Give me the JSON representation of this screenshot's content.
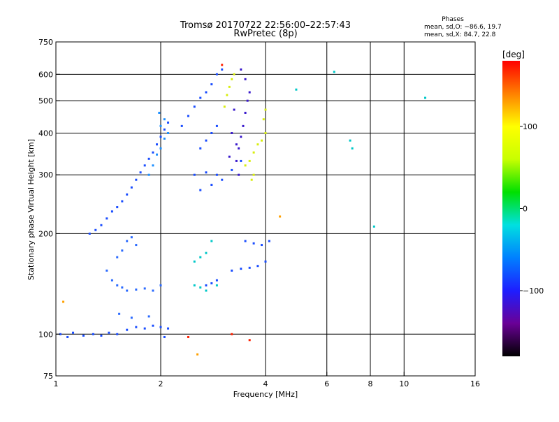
{
  "chart_data": {
    "type": "scatter",
    "title": "Tromsø 20170722 22:56:00–22:57:43",
    "subtitle": "RwPretec (8p)",
    "xlabel": "Frequency [MHz]",
    "ylabel": "Stationary phase Virtual Height [km]",
    "x_scale": "log",
    "y_scale": "log",
    "xlim": [
      1,
      16
    ],
    "ylim": [
      75,
      750
    ],
    "x_ticks": [
      1,
      2,
      4,
      6,
      8,
      10,
      16
    ],
    "x_tick_labels": [
      "1",
      "2",
      "4",
      "6",
      "8",
      "10",
      "16"
    ],
    "x_gridlines": [
      2,
      4,
      6,
      8,
      10
    ],
    "y_ticks": [
      75,
      100,
      200,
      300,
      400,
      500,
      600,
      750
    ],
    "y_tick_labels": [
      "75",
      "100",
      "200",
      "300",
      "400",
      "500",
      "600",
      "750"
    ],
    "y_gridlines": [
      100,
      200,
      300,
      400,
      500,
      600
    ],
    "grid": true,
    "legend_title": "Phases",
    "legend_lines": [
      "mean, sd,O:  −86.6, 19.7",
      "mean, sd,X:   84.7, 22.8"
    ],
    "legend_placement": "top-right",
    "colorbar": {
      "label": "[deg]",
      "range": [
        -180,
        180
      ],
      "ticks": [
        100,
        0,
        -100
      ],
      "tick_labels": [
        "100",
        "0",
        "−100"
      ],
      "colormap": [
        "#000000",
        "#6a0096",
        "#1e1eff",
        "#0080ff",
        "#00e0e0",
        "#00e000",
        "#c8ff00",
        "#ffff00",
        "#ff8000",
        "#ff0000"
      ]
    },
    "series": [
      {
        "color": "#1a4dff",
        "points": [
          [
            1.03,
            100
          ],
          [
            1.08,
            98
          ],
          [
            1.12,
            101
          ],
          [
            1.2,
            99
          ],
          [
            1.28,
            100
          ],
          [
            1.35,
            99
          ],
          [
            1.42,
            101
          ],
          [
            1.5,
            100
          ],
          [
            1.6,
            103
          ],
          [
            1.7,
            105
          ],
          [
            1.8,
            104
          ],
          [
            1.9,
            106
          ],
          [
            2.0,
            105
          ],
          [
            2.1,
            104
          ],
          [
            2.05,
            98
          ]
        ]
      },
      {
        "color": "#1a4dff",
        "points": [
          [
            1.25,
            200
          ],
          [
            1.3,
            205
          ],
          [
            1.35,
            212
          ],
          [
            1.4,
            222
          ],
          [
            1.45,
            233
          ],
          [
            1.5,
            240
          ],
          [
            1.55,
            250
          ],
          [
            1.6,
            262
          ],
          [
            1.65,
            275
          ],
          [
            1.7,
            290
          ],
          [
            1.75,
            305
          ],
          [
            1.8,
            320
          ],
          [
            1.85,
            335
          ],
          [
            1.9,
            350
          ],
          [
            1.95,
            370
          ],
          [
            2.0,
            390
          ],
          [
            2.05,
            410
          ],
          [
            2.1,
            430
          ]
        ]
      },
      {
        "color": "#2a6aff",
        "points": [
          [
            1.4,
            155
          ],
          [
            1.45,
            145
          ],
          [
            1.5,
            140
          ],
          [
            1.55,
            138
          ],
          [
            1.6,
            135
          ],
          [
            1.7,
            136
          ],
          [
            1.8,
            137
          ],
          [
            1.9,
            135
          ],
          [
            2.0,
            140
          ],
          [
            1.5,
            170
          ],
          [
            1.55,
            178
          ],
          [
            1.6,
            190
          ],
          [
            1.65,
            195
          ],
          [
            1.7,
            185
          ],
          [
            1.52,
            115
          ],
          [
            1.65,
            112
          ],
          [
            1.85,
            113
          ]
        ]
      },
      {
        "color": "#1e90ff",
        "points": [
          [
            1.85,
            300
          ],
          [
            1.9,
            320
          ],
          [
            1.95,
            345
          ],
          [
            2.0,
            360
          ],
          [
            2.05,
            385
          ],
          [
            2.1,
            400
          ],
          [
            2.0,
            420
          ],
          [
            2.05,
            440
          ],
          [
            1.98,
            460
          ]
        ]
      },
      {
        "color": "#1a4dff",
        "points": [
          [
            2.3,
            420
          ],
          [
            2.4,
            450
          ],
          [
            2.5,
            480
          ],
          [
            2.6,
            510
          ],
          [
            2.7,
            530
          ],
          [
            2.8,
            560
          ],
          [
            2.9,
            600
          ],
          [
            3.0,
            620
          ],
          [
            2.6,
            360
          ],
          [
            2.7,
            380
          ],
          [
            2.8,
            400
          ],
          [
            2.9,
            420
          ],
          [
            2.5,
            300
          ],
          [
            2.7,
            305
          ],
          [
            2.9,
            300
          ],
          [
            2.6,
            270
          ],
          [
            2.8,
            280
          ],
          [
            3.0,
            290
          ],
          [
            3.2,
            310
          ],
          [
            3.4,
            330
          ]
        ]
      },
      {
        "color": "#3a1acc",
        "points": [
          [
            3.3,
            330
          ],
          [
            3.35,
            360
          ],
          [
            3.4,
            390
          ],
          [
            3.45,
            420
          ],
          [
            3.5,
            460
          ],
          [
            3.55,
            500
          ],
          [
            3.6,
            530
          ],
          [
            3.5,
            580
          ],
          [
            3.4,
            620
          ],
          [
            3.3,
            370
          ],
          [
            3.35,
            300
          ],
          [
            3.15,
            340
          ],
          [
            3.2,
            400
          ],
          [
            3.25,
            470
          ]
        ]
      },
      {
        "color": "#d8ee10",
        "points": [
          [
            3.1,
            520
          ],
          [
            3.15,
            550
          ],
          [
            3.2,
            580
          ],
          [
            3.25,
            600
          ],
          [
            3.05,
            480
          ],
          [
            3.5,
            320
          ],
          [
            3.6,
            330
          ],
          [
            3.7,
            350
          ],
          [
            3.8,
            370
          ],
          [
            3.9,
            380
          ],
          [
            4.0,
            400
          ],
          [
            3.95,
            440
          ],
          [
            4.0,
            470
          ],
          [
            3.65,
            290
          ],
          [
            3.7,
            300
          ]
        ]
      },
      {
        "color": "#1a4dff",
        "points": [
          [
            3.2,
            155
          ],
          [
            3.4,
            157
          ],
          [
            3.6,
            158
          ],
          [
            3.8,
            160
          ],
          [
            4.0,
            165
          ],
          [
            3.5,
            190
          ],
          [
            3.7,
            187
          ],
          [
            3.9,
            185
          ],
          [
            4.1,
            190
          ],
          [
            2.7,
            140
          ],
          [
            2.8,
            142
          ],
          [
            2.9,
            145
          ]
        ]
      },
      {
        "color": "#00c8c8",
        "points": [
          [
            2.5,
            165
          ],
          [
            2.6,
            170
          ],
          [
            2.7,
            175
          ],
          [
            2.5,
            140
          ],
          [
            2.6,
            138
          ],
          [
            2.7,
            135
          ],
          [
            2.8,
            190
          ],
          [
            2.9,
            140
          ],
          [
            7.0,
            380
          ],
          [
            7.1,
            360
          ],
          [
            8.2,
            210
          ],
          [
            6.3,
            610
          ],
          [
            11.5,
            510
          ],
          [
            4.9,
            540
          ]
        ]
      },
      {
        "color": "#ff2000",
        "points": [
          [
            3.6,
            96
          ],
          [
            3.2,
            100
          ],
          [
            2.4,
            98
          ],
          [
            3.0,
            640
          ]
        ]
      },
      {
        "color": "#ffa000",
        "points": [
          [
            1.05,
            125
          ],
          [
            2.55,
            87
          ],
          [
            4.4,
            225
          ]
        ]
      }
    ]
  }
}
